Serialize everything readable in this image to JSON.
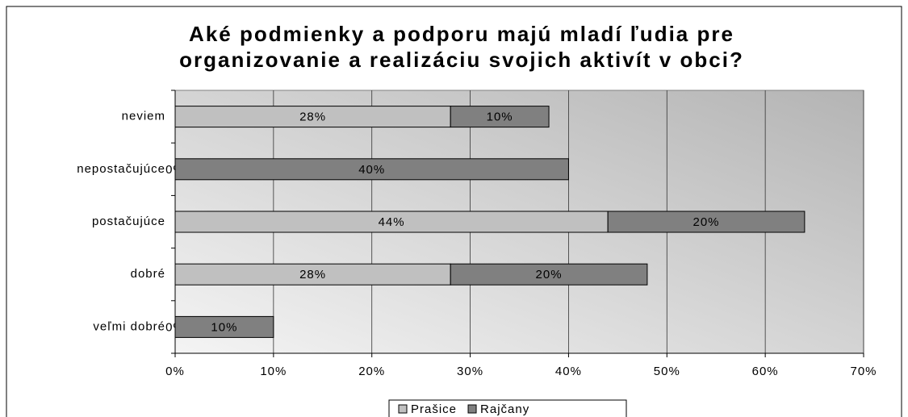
{
  "chart_data": {
    "type": "stacked_barh",
    "title": [
      "Aké podmienky a podporu majú mladí ľudia pre",
      "organizovanie a realizáciu svojich aktivít v obci?"
    ],
    "categories": [
      "neviem",
      "nepostačujúce",
      "postačujúce",
      "dobré",
      "veľmi dobré"
    ],
    "series": [
      {
        "name": "Prašice",
        "color": "#c0c0c0",
        "values": [
          28,
          0,
          44,
          28,
          0
        ],
        "value_labels": [
          "28%",
          "0%",
          "44%",
          "28%",
          "0%"
        ]
      },
      {
        "name": "Rajčany",
        "color": "#808080",
        "values": [
          10,
          40,
          20,
          20,
          10
        ],
        "value_labels": [
          "10%",
          "40%",
          "20%",
          "20%",
          "10%"
        ]
      }
    ],
    "xlim": [
      0,
      70
    ],
    "xticks": [
      {
        "value": 0,
        "label": "0%"
      },
      {
        "value": 10,
        "label": "10%"
      },
      {
        "value": 20,
        "label": "20%"
      },
      {
        "value": 30,
        "label": "30%"
      },
      {
        "value": 40,
        "label": "40%"
      },
      {
        "value": 50,
        "label": "50%"
      },
      {
        "value": 60,
        "label": "60%"
      },
      {
        "value": 70,
        "label": "70%"
      }
    ],
    "grid": true,
    "legend": "bottom"
  }
}
